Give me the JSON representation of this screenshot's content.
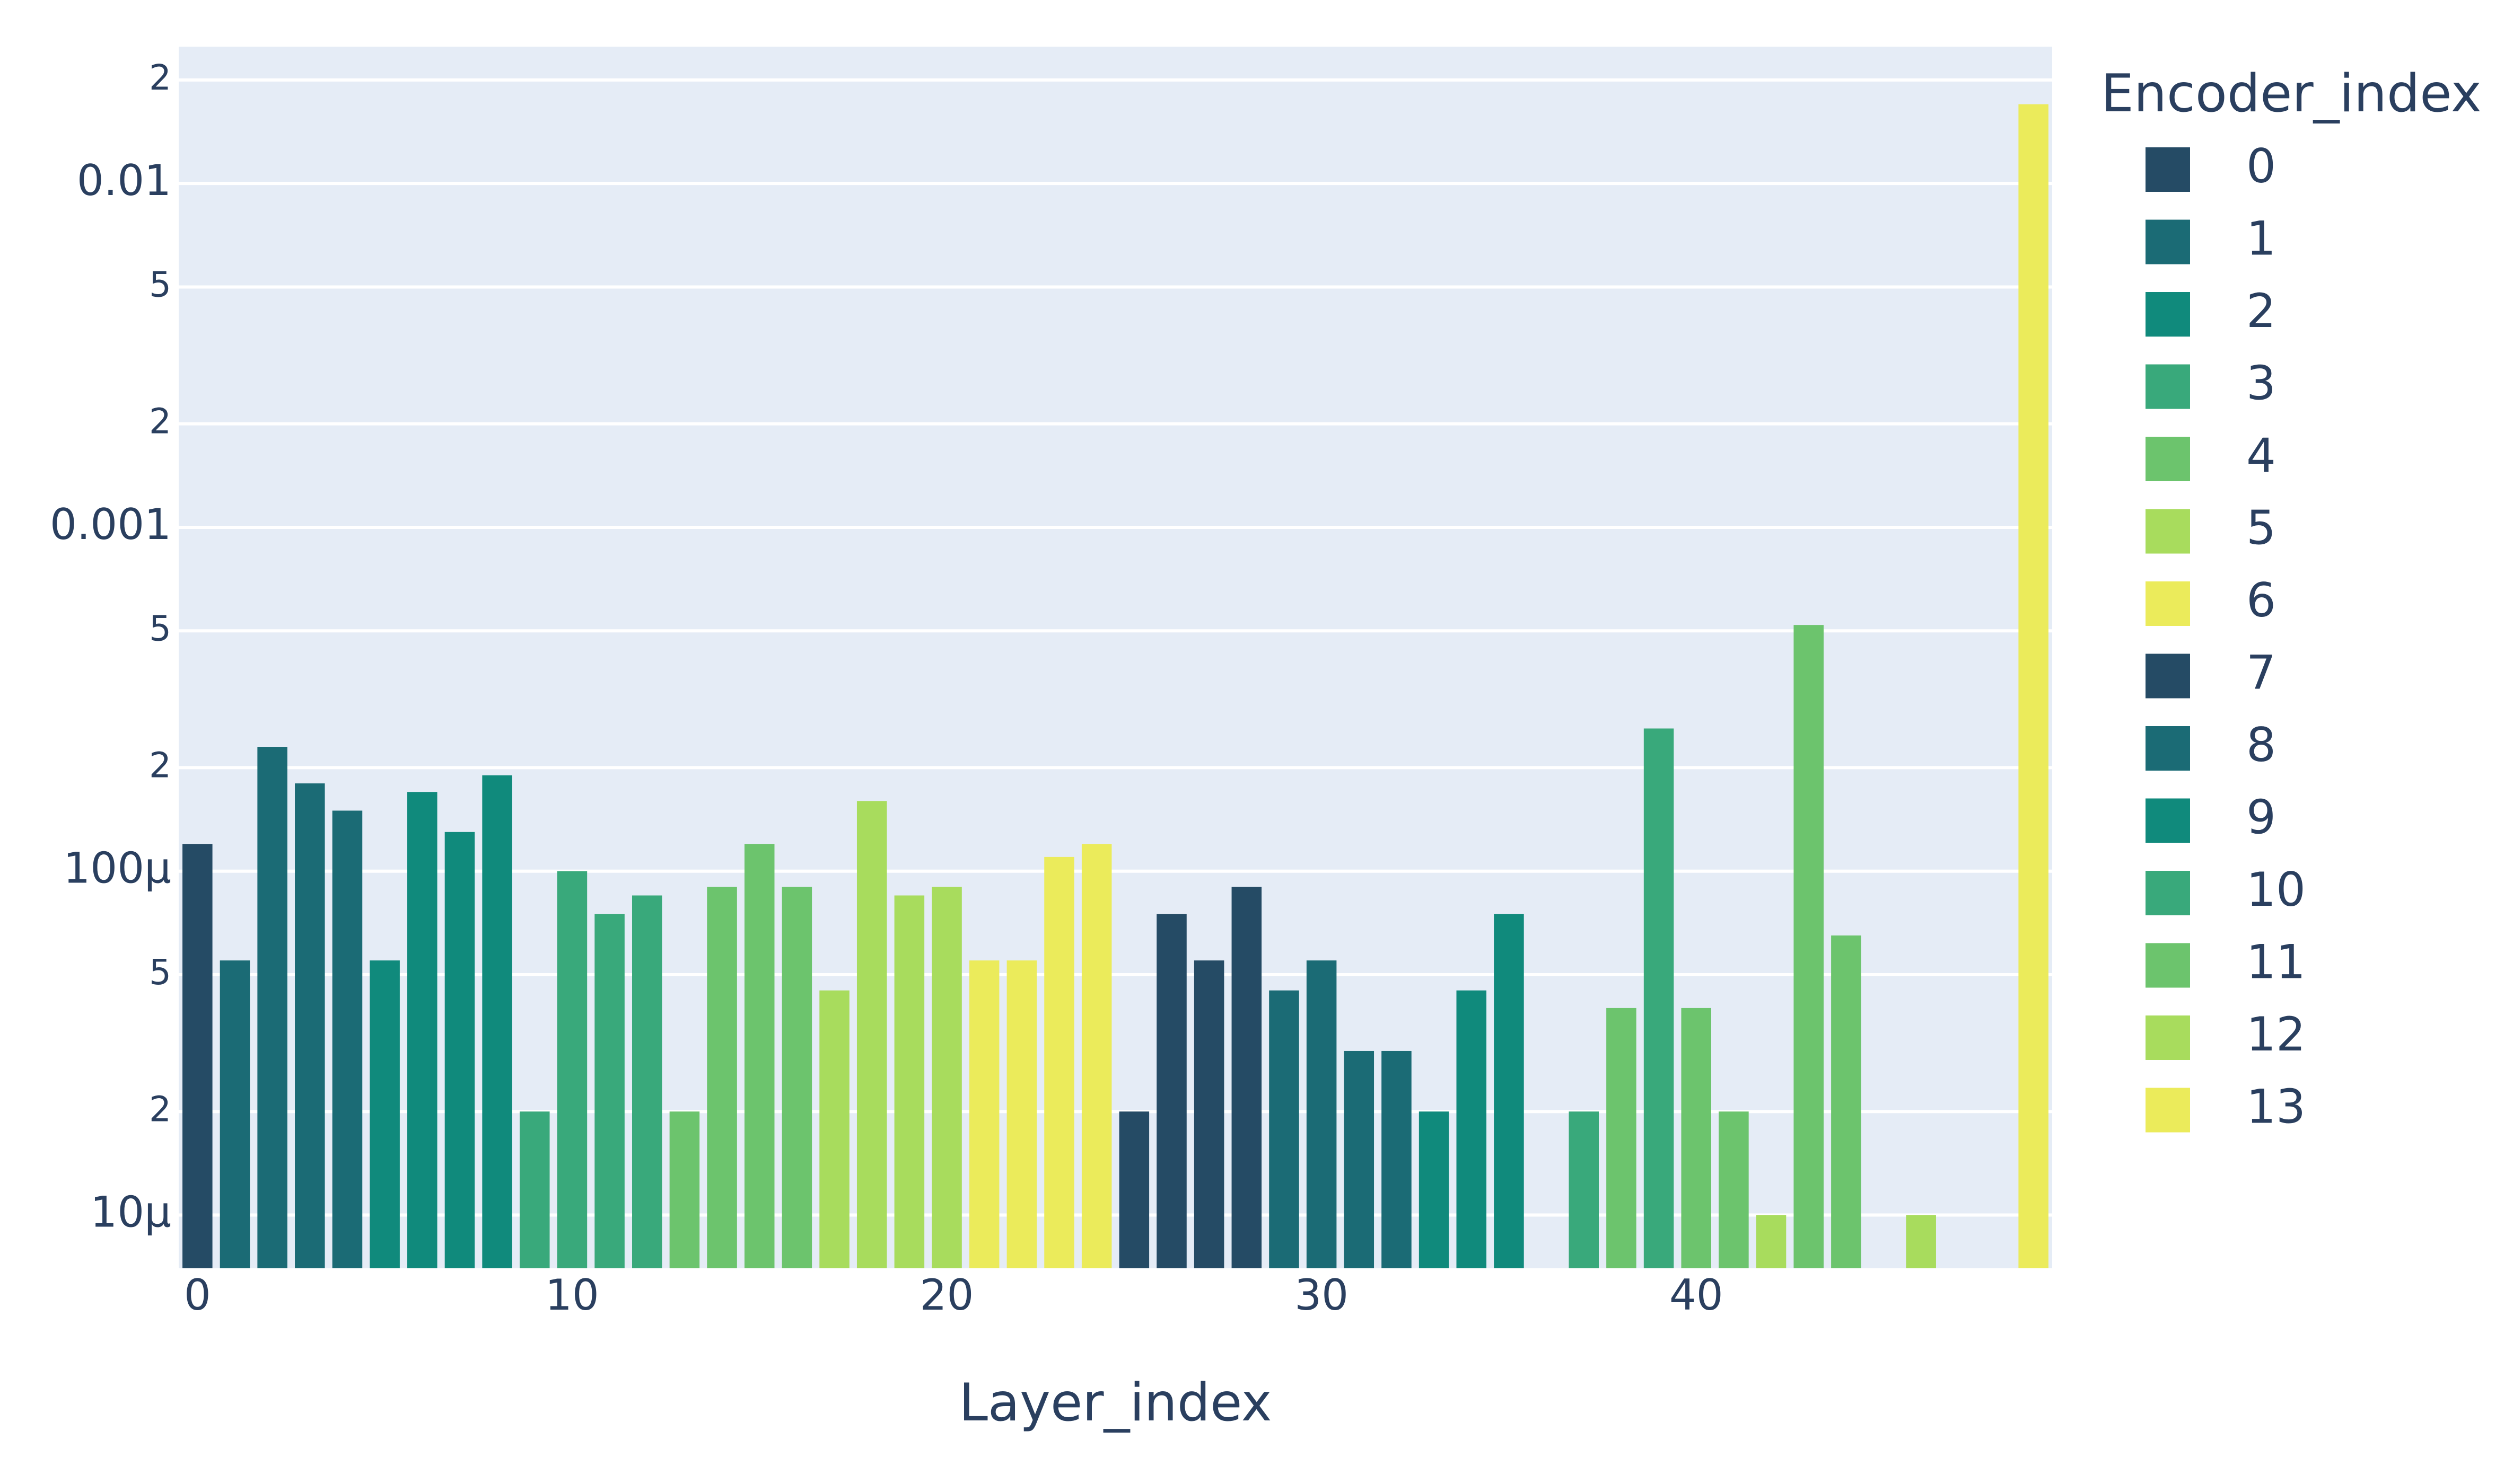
{
  "chart_data": {
    "type": "bar",
    "xlabel": "Layer_index",
    "ylabel": "",
    "y_scale": "log",
    "ylim": [
      7e-06,
      0.025
    ],
    "xlim": [
      -0.5,
      49.5
    ],
    "x_ticks": [
      0,
      10,
      20,
      30,
      40
    ],
    "y_major_ticks": [
      {
        "value": 1e-05,
        "label": "10µ"
      },
      {
        "value": 0.0001,
        "label": "100µ"
      },
      {
        "value": 0.001,
        "label": "0.001"
      },
      {
        "value": 0.01,
        "label": "0.01"
      }
    ],
    "y_minor_ticks": [
      {
        "value": 2e-05,
        "label": "2"
      },
      {
        "value": 5e-05,
        "label": "5"
      },
      {
        "value": 0.0002,
        "label": "2"
      },
      {
        "value": 0.0005,
        "label": "5"
      },
      {
        "value": 0.002,
        "label": "2"
      },
      {
        "value": 0.005,
        "label": "5"
      },
      {
        "value": 0.02,
        "label": "2"
      }
    ],
    "grid": true,
    "plot_background": "#e5ecf6",
    "legend": {
      "title": "Encoder_index",
      "position": "right"
    },
    "series": [
      {
        "name": "0",
        "color": "#254b65",
        "points": [
          [
            0,
            0.00012
          ]
        ]
      },
      {
        "name": "1",
        "color": "#1b6b75",
        "points": [
          [
            1,
            5.5e-05
          ],
          [
            2,
            0.00023
          ],
          [
            3,
            0.00018
          ],
          [
            4,
            0.00015
          ]
        ]
      },
      {
        "name": "2",
        "color": "#108a7c",
        "points": [
          [
            5,
            5.5e-05
          ],
          [
            6,
            0.00017
          ],
          [
            7,
            0.00013
          ],
          [
            8,
            0.00019
          ]
        ]
      },
      {
        "name": "3",
        "color": "#39a97b",
        "points": [
          [
            9,
            2e-05
          ],
          [
            10,
            0.0001
          ],
          [
            11,
            7.5e-05
          ],
          [
            12,
            8.5e-05
          ]
        ]
      },
      {
        "name": "4",
        "color": "#6cc46d",
        "points": [
          [
            13,
            2e-05
          ],
          [
            14,
            9e-05
          ],
          [
            15,
            0.00012
          ],
          [
            16,
            9e-05
          ]
        ]
      },
      {
        "name": "5",
        "color": "#a8dc5d",
        "points": [
          [
            17,
            4.5e-05
          ],
          [
            18,
            0.00016
          ],
          [
            19,
            8.5e-05
          ],
          [
            20,
            9e-05
          ]
        ]
      },
      {
        "name": "6",
        "color": "#ebeb5b",
        "points": [
          [
            21,
            5.5e-05
          ],
          [
            22,
            5.5e-05
          ],
          [
            23,
            0.00011
          ],
          [
            24,
            0.00012
          ]
        ]
      },
      {
        "name": "7",
        "color": "#254b65",
        "points": [
          [
            25,
            2e-05
          ],
          [
            26,
            7.5e-05
          ],
          [
            27,
            5.5e-05
          ],
          [
            28,
            9e-05
          ]
        ]
      },
      {
        "name": "8",
        "color": "#1b6b75",
        "points": [
          [
            29,
            4.5e-05
          ],
          [
            30,
            5.5e-05
          ],
          [
            31,
            3e-05
          ],
          [
            32,
            3e-05
          ]
        ]
      },
      {
        "name": "9",
        "color": "#108a7c",
        "points": [
          [
            33,
            2e-05
          ],
          [
            34,
            4.5e-05
          ],
          [
            35,
            7.5e-05
          ]
        ]
      },
      {
        "name": "10",
        "color": "#39a97b",
        "points": [
          [
            37,
            2e-05
          ],
          [
            39,
            0.00026
          ]
        ]
      },
      {
        "name": "11",
        "color": "#6cc46d",
        "points": [
          [
            38,
            4e-05
          ],
          [
            40,
            4e-05
          ],
          [
            41,
            2e-05
          ],
          [
            43,
            0.00052
          ],
          [
            44,
            6.5e-05
          ]
        ]
      },
      {
        "name": "12",
        "color": "#a8dc5d",
        "points": [
          [
            42,
            1e-05
          ],
          [
            46,
            1e-05
          ]
        ]
      },
      {
        "name": "13",
        "color": "#ebeb5b",
        "points": [
          [
            49,
            0.017
          ]
        ]
      }
    ]
  }
}
